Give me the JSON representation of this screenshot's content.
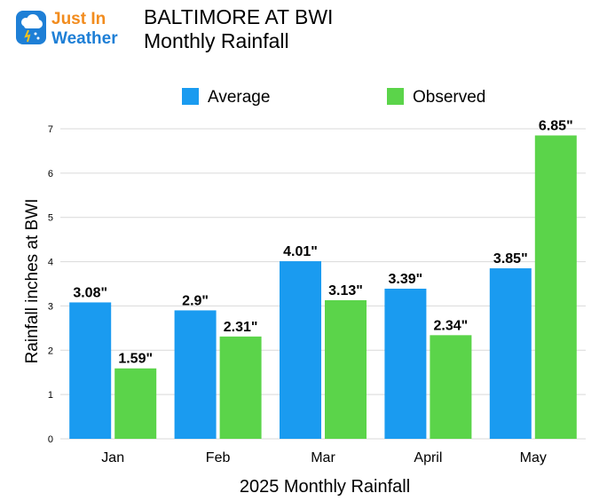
{
  "logo": {
    "line1": "Just In",
    "line2": "Weather"
  },
  "header": {
    "title_line1": "BALTIMORE AT BWI",
    "title_line2": "Monthly Rainfall"
  },
  "colors": {
    "average": "#1a9bf0",
    "observed": "#5bd44a",
    "grid": "#d9d9d9",
    "logo_blue": "#1e7fd6",
    "logo_orange": "#f28c1e"
  },
  "chart_data": {
    "type": "bar",
    "title": "",
    "xlabel": "2025 Monthly Rainfall",
    "ylabel": "Rainfall inches at BWI",
    "ylim": [
      0,
      7
    ],
    "yticks": [
      "0",
      "1",
      "2",
      "3",
      "4",
      "5",
      "6",
      "7"
    ],
    "grid": true,
    "legend": "top-center",
    "categories": [
      "Jan",
      "Feb",
      "Mar",
      "April",
      "May"
    ],
    "series": [
      {
        "name": "Average",
        "values": [
          3.08,
          2.9,
          4.01,
          3.39,
          3.85
        ],
        "labels": [
          "3.08\"",
          "2.9\"",
          "4.01\"",
          "3.39\"",
          "3.85\""
        ]
      },
      {
        "name": "Observed",
        "values": [
          1.59,
          2.31,
          3.13,
          2.34,
          6.85
        ],
        "labels": [
          "1.59\"",
          "2.31\"",
          "3.13\"",
          "2.34\"",
          "6.85\""
        ]
      }
    ]
  }
}
